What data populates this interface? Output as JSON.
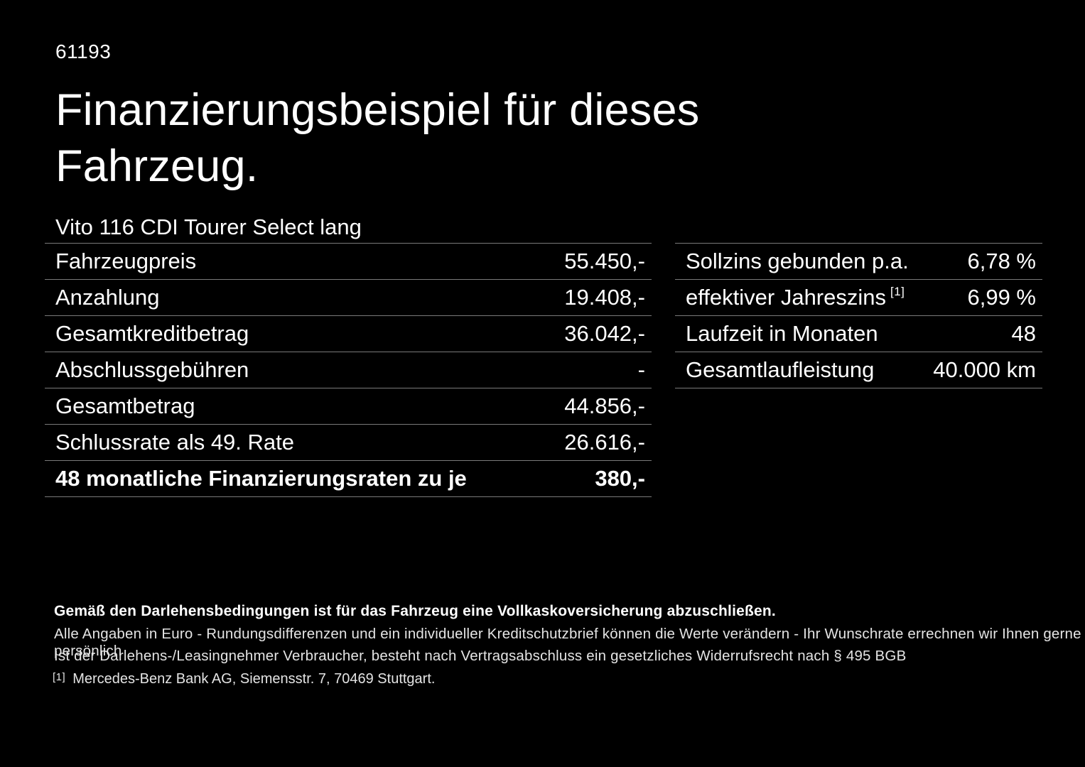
{
  "page": {
    "background": "#000000",
    "text_color": "#ffffff",
    "divider_color": "#7a7a7a",
    "doc_number": "61193",
    "title_line1": "Finanzierungsbeispiel für dieses",
    "title_line2": "Fahrzeug.",
    "vehicle_model": "Vito 116 CDI Tourer Select lang"
  },
  "finance_table": {
    "rows": [
      {
        "label": "Fahrzeugpreis",
        "value": "55.450,-"
      },
      {
        "label": "Anzahlung",
        "value": "19.408,-"
      },
      {
        "label": "Gesamtkreditbetrag",
        "value": "36.042,-"
      },
      {
        "label": "Abschlussgebühren",
        "value": "-"
      },
      {
        "label": "Gesamtbetrag",
        "value": "44.856,-"
      },
      {
        "label": "Schlussrate als 49. Rate",
        "value": "26.616,-"
      },
      {
        "label": "48 monatliche Finanzierungsraten zu je",
        "value": "380,-",
        "bold": true
      }
    ]
  },
  "conditions_table": {
    "rows": [
      {
        "label": "Sollzins gebunden p.a.",
        "value": "6,78 %"
      },
      {
        "label": "effektiver Jahreszins",
        "footnote_marker": "[1]",
        "value": "6,99 %"
      },
      {
        "label": "Laufzeit in Monaten",
        "value": "48"
      },
      {
        "label": "Gesamtlaufleistung",
        "value": "40.000 km"
      }
    ]
  },
  "footer": {
    "insurance_note": "Gemäß den Darlehensbedingungen ist für das Fahrzeug eine Vollkaskoversicherung abzuschließen.",
    "note_line1": "Alle Angaben in Euro - Rundungsdifferenzen und ein individueller Kreditschutzbrief können die Werte verändern - Ihr Wunschrate errechnen wir Ihnen gerne persönlich",
    "note_line2": "Ist der Darlehens-/Leasingnehmer Verbraucher, besteht nach Vertragsabschluss ein gesetzliches Widerrufsrecht nach § 495 BGB",
    "footnote_marker": "[1]",
    "footnote_text": "Mercedes-Benz Bank AG, Siemensstr. 7, 70469 Stuttgart."
  }
}
